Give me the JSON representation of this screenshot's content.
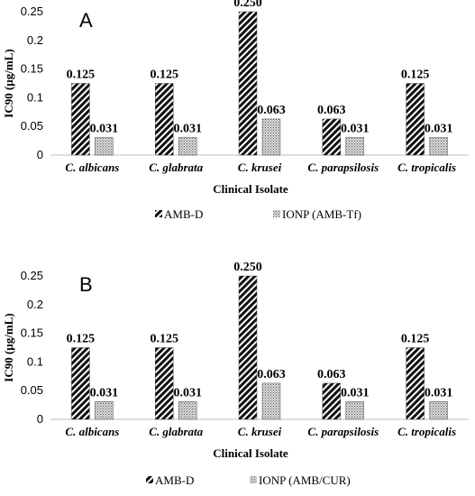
{
  "chart_data": [
    {
      "type": "bar",
      "panel_label": "A",
      "categories": [
        "C. albicans",
        "C. glabrata",
        "C. krusei",
        "C. parapsilosis",
        "C. tropicalis"
      ],
      "series": [
        {
          "name": "AMB-D",
          "values": [
            0.125,
            0.125,
            0.25,
            0.063,
            0.125
          ],
          "labels": [
            "0.125",
            "0.125",
            "0.250",
            "0.063",
            "0.125"
          ]
        },
        {
          "name": "IONP (AMB-Tf)",
          "values": [
            0.031,
            0.031,
            0.063,
            0.031,
            0.031
          ],
          "labels": [
            "0.031",
            "0.031",
            "0.063",
            "0.031",
            "0.031"
          ]
        }
      ],
      "xlabel": "Clinical Isolate",
      "ylabel": "IC90 (µg/mL)",
      "ylim": [
        0,
        0.25
      ],
      "yticks": [
        "0",
        "0.05",
        "0.1",
        "0.15",
        "0.2",
        "0.25"
      ],
      "grid": false,
      "legend": "bottom"
    },
    {
      "type": "bar",
      "panel_label": "B",
      "categories": [
        "C. albicans",
        "C. glabrata",
        "C. krusei",
        "C. parapsilosis",
        "C. tropicalis"
      ],
      "series": [
        {
          "name": "AMB-D",
          "values": [
            0.125,
            0.125,
            0.25,
            0.063,
            0.125
          ],
          "labels": [
            "0.125",
            "0.125",
            "0.250",
            "0.063",
            "0.125"
          ]
        },
        {
          "name": "IONP (AMB/CUR)",
          "values": [
            0.031,
            0.031,
            0.063,
            0.031,
            0.031
          ],
          "labels": [
            "0.031",
            "0.031",
            "0.063",
            "0.031",
            "0.031"
          ]
        }
      ],
      "xlabel": "Clinical Isolate",
      "ylabel": "IC90 (µg/mL)",
      "ylim": [
        0,
        0.25
      ],
      "yticks": [
        "0",
        "0.05",
        "0.1",
        "0.15",
        "0.2",
        "0.25"
      ],
      "grid": false,
      "legend": "bottom"
    }
  ]
}
